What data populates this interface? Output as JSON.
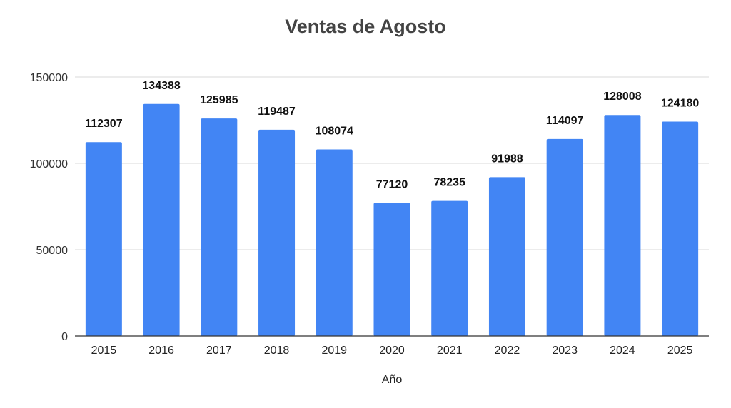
{
  "chart_data": {
    "type": "bar",
    "title": "Ventas de Agosto",
    "xlabel": "Año",
    "ylabel": "",
    "categories": [
      "2015",
      "2016",
      "2017",
      "2018",
      "2019",
      "2020",
      "2021",
      "2022",
      "2023",
      "2024",
      "2025"
    ],
    "values": [
      112307,
      134388,
      125985,
      119487,
      108074,
      77120,
      78235,
      91988,
      114097,
      128008,
      124180
    ],
    "ylim": [
      0,
      150000
    ],
    "yticks": [
      0,
      50000,
      100000,
      150000
    ],
    "grid": true,
    "data_labels": true,
    "bar_color": "#4285F4"
  }
}
